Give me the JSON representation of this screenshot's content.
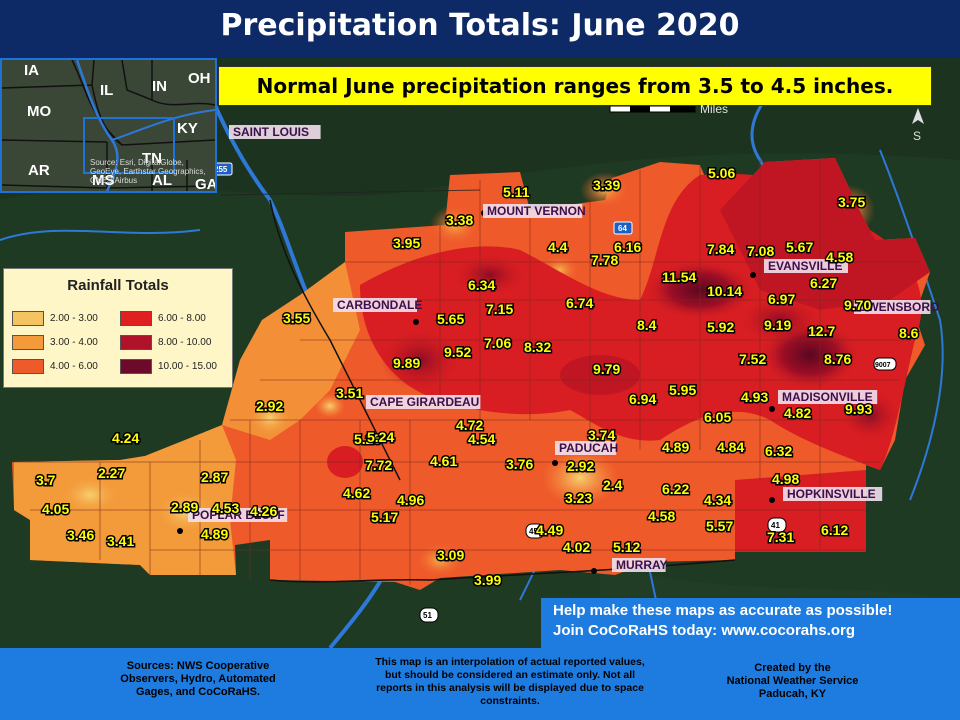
{
  "title": "Precipitation Totals: June 2020",
  "normal_note": "Normal June precipitation ranges from 3.5 to 4.5 inches.",
  "scale_unit": "Miles",
  "inset": {
    "states": [
      "IA",
      "IL",
      "IN",
      "OH",
      "MO",
      "KY",
      "AR",
      "TN",
      "MS",
      "AL",
      "GA"
    ],
    "source": "Source: Esri, DigitalGlobe, GeoEye, Earthstar Geographics, CNES/Airbus"
  },
  "legend": {
    "title": "Rainfall Totals",
    "items": [
      {
        "label": "2.00 - 3.00",
        "color": "#f5c462"
      },
      {
        "label": "6.00 - 8.00",
        "color": "#e02020"
      },
      {
        "label": "3.00 - 4.00",
        "color": "#f39a3a"
      },
      {
        "label": "8.00 - 10.00",
        "color": "#b0122a"
      },
      {
        "label": "4.00 - 6.00",
        "color": "#ef5a2a"
      },
      {
        "label": "10.00 - 15.00",
        "color": "#6b0a2a"
      }
    ]
  },
  "cities": [
    {
      "name": "SAINT LOUIS"
    },
    {
      "name": "MOUNT VERNON"
    },
    {
      "name": "EVANSVILLE"
    },
    {
      "name": "OWENSBORO"
    },
    {
      "name": "CARBONDALE"
    },
    {
      "name": "CAPE GIRARDEAU"
    },
    {
      "name": "MADISONVILLE"
    },
    {
      "name": "PADUCAH"
    },
    {
      "name": "HOPKINSVILLE"
    },
    {
      "name": "POPLAR BLUFF"
    },
    {
      "name": "MURRAY"
    }
  ],
  "observations": [
    "5.06",
    "5.11",
    "3.39",
    "3.75",
    "3.38",
    "3.95",
    "4.4",
    "7.78",
    "6.16",
    "7.84",
    "7.08",
    "5.67",
    "4.58",
    "6.27",
    "11.54",
    "10.14",
    "6.97",
    "9.70",
    "6.34",
    "7.15",
    "6.74",
    "8.4",
    "5.92",
    "9.19",
    "12.7",
    "8.6",
    "3.55",
    "5.65",
    "7.06",
    "8.32",
    "7.52",
    "8.76",
    "9.89",
    "9.52",
    "9.79",
    "5.95",
    "6.94",
    "4.93",
    "4.82",
    "9.93",
    "3.51",
    "2.92",
    "6.05",
    "4.72",
    "4.24",
    "5.25",
    "5.24",
    "4.54",
    "3.74",
    "4.89",
    "4.84",
    "6.32",
    "7.72",
    "4.61",
    "3.76",
    "2.92",
    "3.7",
    "2.27",
    "2.87",
    "4.62",
    "4.96",
    "3.23",
    "2.4",
    "6.22",
    "4.98",
    "4.05",
    "2.89",
    "4.53",
    "4.26",
    "5.17",
    "4.34",
    "3.46",
    "3.41",
    "4.89",
    "4.49",
    "4.58",
    "5.57",
    "6.12",
    "7.31",
    "4.02",
    "5.12",
    "3.09",
    "3.99"
  ],
  "road_shields": [
    "255",
    "64",
    "45",
    "41",
    "51",
    "9007"
  ],
  "cocorahs_text": [
    "Help make these maps as accurate as possible!",
    "Join CoCoRaHS today: www.cocorahs.org"
  ],
  "footer": {
    "sources": [
      "Sources: NWS Cooperative",
      "Observers, Hydro, Automated",
      "Gages, and CoCoRaHS."
    ],
    "disclaimer": [
      "This map is an interpolation of actual reported values,",
      "but should be considered an estimate only. Not all",
      "reports in this analysis will be displayed due to space",
      "constraints."
    ],
    "credit": [
      "Created by the",
      "National Weather Service",
      "Paducah, KY"
    ]
  },
  "colors": {
    "title_bg": "#0d2a66",
    "footer_bg": "#1e7ce0",
    "note_bg": "#ffff00",
    "label_text": "#ffff00",
    "city_bg": "#f2e0ee",
    "city_text": "#3a0f4a"
  }
}
